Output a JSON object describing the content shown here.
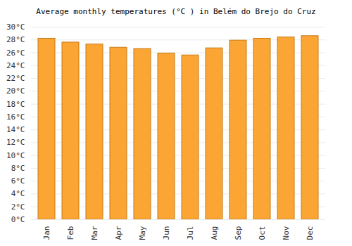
{
  "chart_data": {
    "type": "bar",
    "title": "Average monthly temperatures (°C ) in Belém do Brejo do Cruz",
    "categories": [
      "Jan",
      "Feb",
      "Mar",
      "Apr",
      "May",
      "Jun",
      "Jul",
      "Aug",
      "Sep",
      "Oct",
      "Nov",
      "Dec"
    ],
    "values": [
      28.2,
      27.6,
      27.3,
      26.8,
      26.6,
      25.9,
      25.6,
      26.7,
      27.9,
      28.2,
      28.4,
      28.6
    ],
    "color": "#fba535",
    "ylim": [
      0,
      30
    ],
    "yticks": [
      {
        "value": 0,
        "label": "0°C"
      },
      {
        "value": 2,
        "label": "2°C"
      },
      {
        "value": 4,
        "label": "4°C"
      },
      {
        "value": 6,
        "label": "6°C"
      },
      {
        "value": 8,
        "label": "8°C"
      },
      {
        "value": 10,
        "label": "10°C"
      },
      {
        "value": 12,
        "label": "12°C"
      },
      {
        "value": 14,
        "label": "14°C"
      },
      {
        "value": 16,
        "label": "16°C"
      },
      {
        "value": 18,
        "label": "18°C"
      },
      {
        "value": 20,
        "label": "20°C"
      },
      {
        "value": 22,
        "label": "22°C"
      },
      {
        "value": 24,
        "label": "24°C"
      },
      {
        "value": 26,
        "label": "26°C"
      },
      {
        "value": 28,
        "label": "28°C"
      },
      {
        "value": 30,
        "label": "30°C"
      }
    ],
    "grid": true
  }
}
